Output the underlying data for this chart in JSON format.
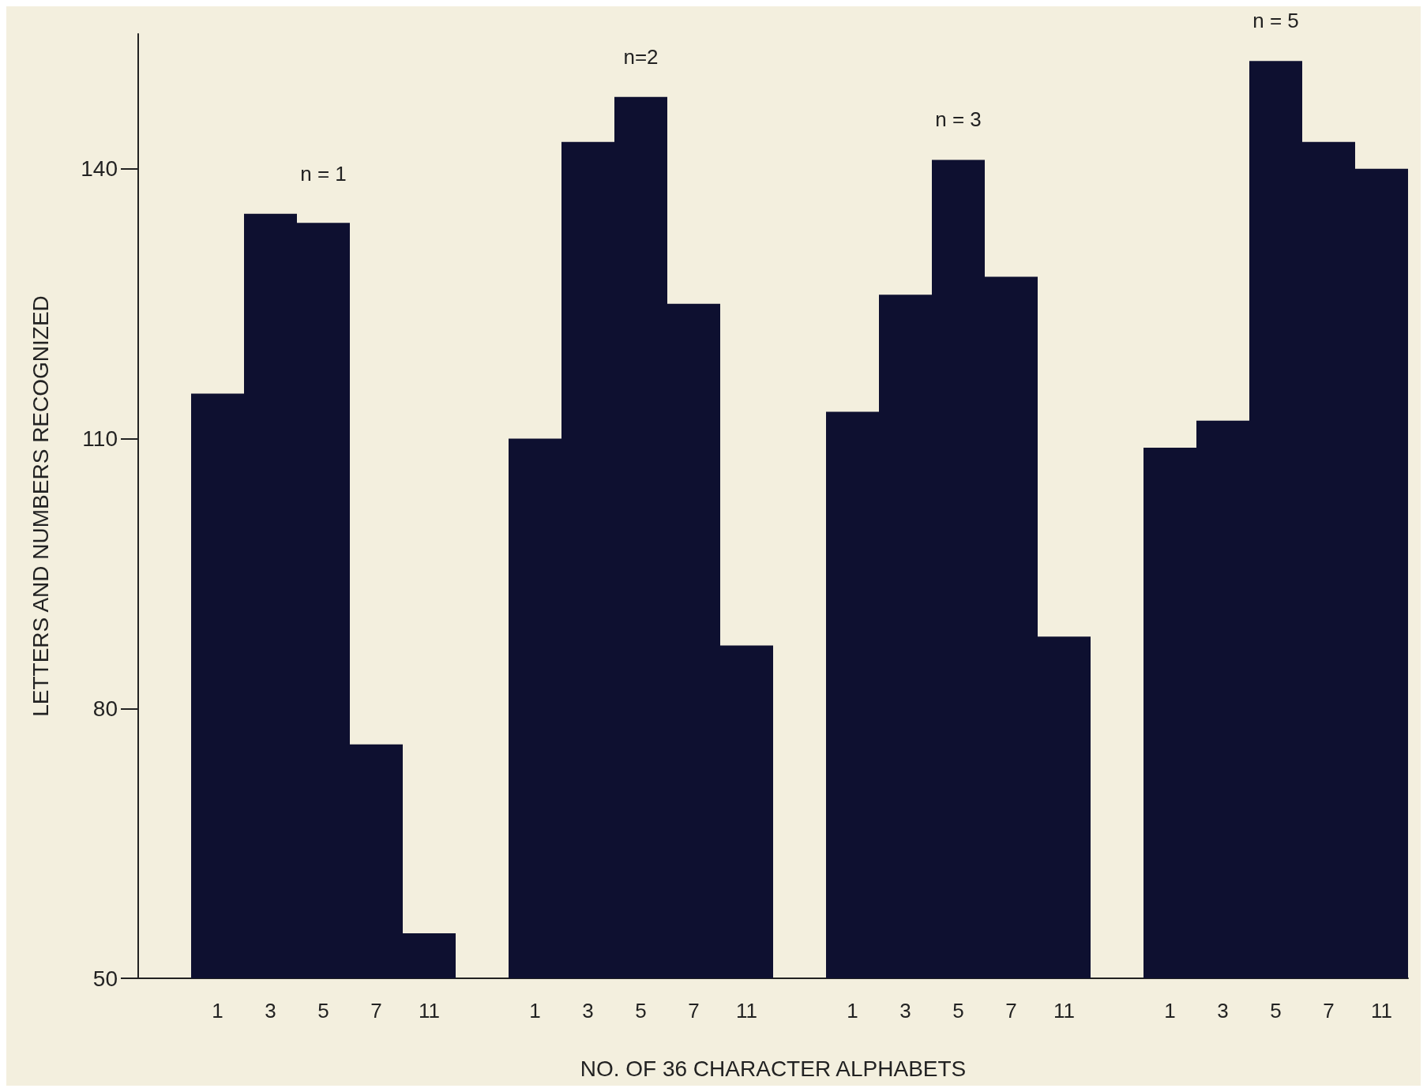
{
  "chart_data": {
    "type": "bar",
    "xlabel": "NO. OF 36 CHARACTER ALPHABETS",
    "ylabel": "LETTERS AND NUMBERS RECOGNIZED",
    "categories": [
      null,
      "1",
      "3",
      "5",
      "7",
      "11",
      null,
      "1",
      "3",
      "5",
      "7",
      "11",
      null,
      "1",
      "3",
      "5",
      "7",
      "11",
      null,
      "1",
      "3",
      "5",
      "7",
      "11"
    ],
    "values": [
      null,
      115,
      135,
      134,
      76,
      55,
      null,
      110,
      143,
      148,
      125,
      87,
      null,
      113,
      126,
      141,
      128,
      88,
      null,
      109,
      112,
      152,
      143,
      140
    ],
    "color": "#0e1030",
    "ylim": [
      50,
      155
    ],
    "yticks": [
      50,
      80,
      110,
      140
    ],
    "grid": false,
    "annotations": [
      "n = 1",
      "n=2",
      "n = 3",
      "n = 5"
    ]
  }
}
